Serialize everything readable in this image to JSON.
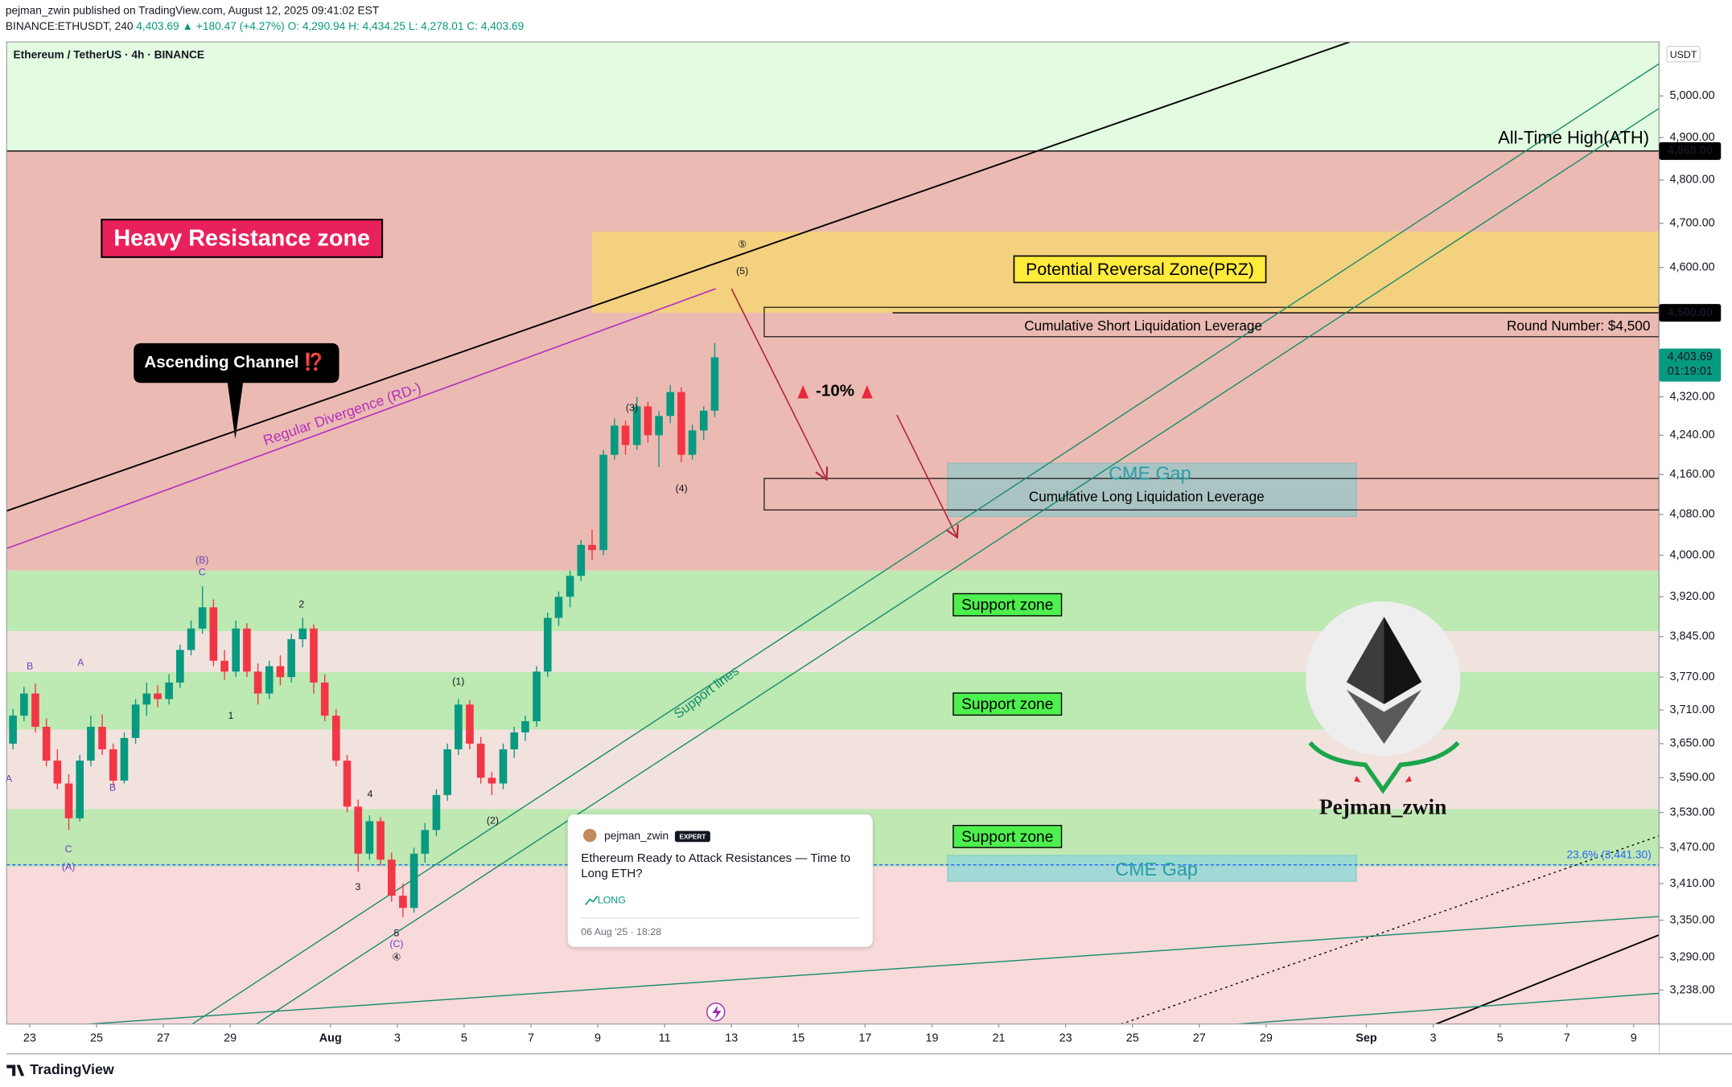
{
  "header": {
    "publisher": "pejman_zwin published on TradingView.com, August 12, 2025 09:41:02 EST",
    "symbol": "BINANCE:ETHUSDT, 240",
    "last": "4,403.69 ▲ +180.47 (+4.27%)",
    "ohlc": "O: 4,290.94 H: 4,434.25 L: 4,278.01 C: 4,403.69"
  },
  "chart_data": {
    "type": "candlestick",
    "title": "Ethereum / TetherUS · 4h · BINANCE",
    "currency": "USDT",
    "log_scale": true,
    "up_color": "#089981",
    "down_color": "#f23645",
    "x": [
      -0.5,
      -0.17,
      0.17,
      0.5,
      0.83,
      1.17,
      1.5,
      1.83,
      2.17,
      2.5,
      2.83,
      3.17,
      3.5,
      3.83,
      4.17,
      4.5,
      4.83,
      5.17,
      5.5,
      5.83,
      6.17,
      6.5,
      6.83,
      7.17,
      7.5,
      7.83,
      8.17,
      8.5,
      8.83,
      9.17,
      9.5,
      9.83,
      10.17,
      10.5,
      10.83,
      11.17,
      11.5,
      11.83,
      12.17,
      12.5,
      12.83,
      13.17,
      13.5,
      13.83,
      14.17,
      14.5,
      14.83,
      15.17,
      15.5,
      15.83,
      16.17,
      16.5,
      16.83,
      17.17,
      17.5,
      17.83,
      18.17,
      18.5,
      18.83,
      19.17,
      19.5,
      19.83,
      20.17,
      20.5
    ],
    "ohlc": [
      [
        3650,
        3712,
        3640,
        3700
      ],
      [
        3700,
        3752,
        3690,
        3740
      ],
      [
        3740,
        3758,
        3670,
        3680
      ],
      [
        3680,
        3695,
        3610,
        3620
      ],
      [
        3620,
        3640,
        3570,
        3580
      ],
      [
        3580,
        3596,
        3500,
        3520
      ],
      [
        3520,
        3630,
        3515,
        3620
      ],
      [
        3620,
        3700,
        3610,
        3680
      ],
      [
        3680,
        3702,
        3630,
        3640
      ],
      [
        3640,
        3650,
        3576,
        3585
      ],
      [
        3585,
        3670,
        3580,
        3660
      ],
      [
        3660,
        3730,
        3650,
        3720
      ],
      [
        3720,
        3760,
        3700,
        3740
      ],
      [
        3740,
        3755,
        3715,
        3730
      ],
      [
        3730,
        3775,
        3720,
        3760
      ],
      [
        3760,
        3830,
        3750,
        3820
      ],
      [
        3820,
        3875,
        3810,
        3860
      ],
      [
        3860,
        3940,
        3850,
        3900
      ],
      [
        3900,
        3915,
        3790,
        3800
      ],
      [
        3800,
        3820,
        3765,
        3780
      ],
      [
        3780,
        3875,
        3770,
        3860
      ],
      [
        3860,
        3870,
        3770,
        3780
      ],
      [
        3780,
        3795,
        3720,
        3740
      ],
      [
        3740,
        3800,
        3730,
        3790
      ],
      [
        3790,
        3810,
        3755,
        3770
      ],
      [
        3770,
        3850,
        3760,
        3840
      ],
      [
        3840,
        3880,
        3825,
        3860
      ],
      [
        3860,
        3868,
        3740,
        3760
      ],
      [
        3760,
        3775,
        3690,
        3700
      ],
      [
        3700,
        3712,
        3610,
        3620
      ],
      [
        3620,
        3630,
        3530,
        3540
      ],
      [
        3540,
        3552,
        3430,
        3460
      ],
      [
        3460,
        3525,
        3450,
        3515
      ],
      [
        3515,
        3522,
        3440,
        3450
      ],
      [
        3450,
        3462,
        3380,
        3390
      ],
      [
        3390,
        3410,
        3355,
        3370
      ],
      [
        3370,
        3470,
        3362,
        3460
      ],
      [
        3460,
        3512,
        3445,
        3500
      ],
      [
        3500,
        3570,
        3490,
        3560
      ],
      [
        3560,
        3650,
        3550,
        3640
      ],
      [
        3640,
        3730,
        3630,
        3720
      ],
      [
        3720,
        3728,
        3640,
        3650
      ],
      [
        3650,
        3662,
        3580,
        3590
      ],
      [
        3590,
        3600,
        3560,
        3580
      ],
      [
        3580,
        3650,
        3570,
        3640
      ],
      [
        3640,
        3680,
        3625,
        3670
      ],
      [
        3670,
        3700,
        3655,
        3690
      ],
      [
        3690,
        3790,
        3680,
        3780
      ],
      [
        3780,
        3890,
        3770,
        3880
      ],
      [
        3880,
        3930,
        3865,
        3920
      ],
      [
        3920,
        3970,
        3900,
        3960
      ],
      [
        3960,
        4030,
        3950,
        4020
      ],
      [
        4020,
        4050,
        3990,
        4010
      ],
      [
        4010,
        4210,
        4000,
        4200
      ],
      [
        4200,
        4275,
        4190,
        4260
      ],
      [
        4260,
        4270,
        4200,
        4220
      ],
      [
        4220,
        4320,
        4210,
        4300
      ],
      [
        4300,
        4310,
        4225,
        4240
      ],
      [
        4240,
        4290,
        4175,
        4280
      ],
      [
        4280,
        4345,
        4265,
        4330
      ],
      [
        4330,
        4340,
        4185,
        4200
      ],
      [
        4200,
        4262,
        4190,
        4250
      ],
      [
        4250,
        4300,
        4230,
        4290.94
      ],
      [
        4290.94,
        4434.25,
        4278.01,
        4403.69
      ]
    ],
    "xlim": [
      -0.69,
      48.76
    ],
    "xticks": [
      {
        "value": 0,
        "label": "23"
      },
      {
        "value": 2,
        "label": "25"
      },
      {
        "value": 4,
        "label": "27"
      },
      {
        "value": 6,
        "label": "29"
      },
      {
        "value": 9,
        "label": "Aug"
      },
      {
        "value": 11,
        "label": "3"
      },
      {
        "value": 13,
        "label": "5"
      },
      {
        "value": 15,
        "label": "7"
      },
      {
        "value": 17,
        "label": "9"
      },
      {
        "value": 19,
        "label": "11"
      },
      {
        "value": 21,
        "label": "13"
      },
      {
        "value": 23,
        "label": "15"
      },
      {
        "value": 25,
        "label": "17"
      },
      {
        "value": 27,
        "label": "19"
      },
      {
        "value": 29,
        "label": "21"
      },
      {
        "value": 31,
        "label": "23"
      },
      {
        "value": 33,
        "label": "25"
      },
      {
        "value": 35,
        "label": "27"
      },
      {
        "value": 37,
        "label": "29"
      },
      {
        "value": 40,
        "label": "Sep"
      },
      {
        "value": 42,
        "label": "3"
      },
      {
        "value": 44,
        "label": "5"
      },
      {
        "value": 46,
        "label": "7"
      },
      {
        "value": 48,
        "label": "9"
      }
    ],
    "ylim": [
      3185,
      5133
    ],
    "yticks": [
      {
        "value": 5000,
        "label": "5,000.00"
      },
      {
        "value": 4900,
        "label": "4,900.00"
      },
      {
        "value": 4800,
        "label": "4,800.00"
      },
      {
        "value": 4700,
        "label": "4,700.00"
      },
      {
        "value": 4600,
        "label": "4,600.00"
      },
      {
        "value": 4320,
        "label": "4,320.00"
      },
      {
        "value": 4240,
        "label": "4,240.00"
      },
      {
        "value": 4160,
        "label": "4,160.00"
      },
      {
        "value": 4080,
        "label": "4,080.00"
      },
      {
        "value": 4000,
        "label": "4,000.00"
      },
      {
        "value": 3920,
        "label": "3,920.00"
      },
      {
        "value": 3845,
        "label": "3,845.00"
      },
      {
        "value": 3770,
        "label": "3,770.00"
      },
      {
        "value": 3710,
        "label": "3,710.00"
      },
      {
        "value": 3650,
        "label": "3,650.00"
      },
      {
        "value": 3590,
        "label": "3,590.00"
      },
      {
        "value": 3530,
        "label": "3,530.00"
      },
      {
        "value": 3470,
        "label": "3,470.00"
      },
      {
        "value": 3410,
        "label": "3,410.00"
      },
      {
        "value": 3350,
        "label": "3,350.00"
      },
      {
        "value": 3290,
        "label": "3,290.00"
      },
      {
        "value": 3238,
        "label": "3,238.00"
      }
    ],
    "price_labels": [
      {
        "value": 4868,
        "label": "4,868.00"
      },
      {
        "value": 4500,
        "label": "4,500.00"
      }
    ],
    "last_price": {
      "value": 4403.69,
      "label": "4,403.69",
      "countdown": "01:19:01",
      "color": "#089981"
    }
  },
  "zones": [
    {
      "from": 4868,
      "to": 5133,
      "color": "#e3fbe1"
    },
    {
      "from": 3970,
      "to": 4868,
      "color": "#ebbbb3"
    },
    {
      "from": 3855,
      "to": 3970,
      "color": "#bde9b2"
    },
    {
      "from": 3779,
      "to": 3855,
      "color": "#f0e3de"
    },
    {
      "from": 3675,
      "to": 3779,
      "color": "#bde9b2"
    },
    {
      "from": 3536,
      "to": 3675,
      "color": "#f1e2de"
    },
    {
      "from": 3438,
      "to": 3536,
      "color": "#bfe8b3"
    },
    {
      "from": 3185,
      "to": 3438,
      "color": "#f8dadb"
    }
  ],
  "boxes": [
    {
      "x": [
        16.83,
        48.76
      ],
      "from": 4500,
      "to": 4681,
      "fill": "#f6d576",
      "stroke": "none"
    },
    {
      "x": [
        21.98,
        48.76
      ],
      "from": 4448,
      "to": 4512,
      "fill": "none",
      "stroke": "#000000"
    },
    {
      "x": [
        27.47,
        39.7
      ],
      "from": 4076,
      "to": 4183,
      "fill": "#9fc6c6",
      "stroke": "#8fb8b8"
    },
    {
      "x": [
        21.98,
        48.76
      ],
      "from": 4089,
      "to": 4152,
      "fill": "none",
      "stroke": "#000000"
    },
    {
      "x": [
        27.47,
        39.7
      ],
      "from": 3414,
      "to": 3457,
      "fill": "#93d8d6",
      "stroke": "#7ccac8"
    }
  ],
  "levels": [
    {
      "value": 4868,
      "x": [
        -0.69,
        48.76
      ],
      "color": "#000000",
      "dash": false
    },
    {
      "value": 4500,
      "x": [
        25.82,
        48.76
      ],
      "color": "#000000",
      "dash": false
    },
    {
      "value": 3441.3,
      "x": [
        -0.69,
        48.76
      ],
      "color": "#2962ff",
      "dash": true
    }
  ],
  "drawings": [
    {
      "points": [
        [
          -0.69,
          4087
        ],
        [
          39.5,
          5133
        ]
      ],
      "color": "#000000",
      "width": 1.4,
      "dash": false,
      "arrow": false
    },
    {
      "points": [
        [
          -0.69,
          4013
        ],
        [
          20.53,
          4553
        ]
      ],
      "color": "#b52fbf",
      "width": 1.2,
      "dash": false,
      "arrow": false
    },
    {
      "points": [
        [
          4.86,
          3185
        ],
        [
          48.76,
          5079
        ]
      ],
      "color": "#138a6a",
      "width": 1,
      "dash": false,
      "arrow": false
    },
    {
      "points": [
        [
          6.78,
          3185
        ],
        [
          48.76,
          4970
        ]
      ],
      "color": "#138a6a",
      "width": 1,
      "dash": false,
      "arrow": false
    },
    {
      "points": [
        [
          1.75,
          3185
        ],
        [
          48.76,
          3356
        ]
      ],
      "color": "#138a6a",
      "width": 1,
      "dash": false,
      "arrow": false
    },
    {
      "points": [
        [
          42.08,
          3185
        ],
        [
          48.76,
          3326
        ]
      ],
      "color": "#000000",
      "width": 1.4,
      "dash": false,
      "arrow": false
    },
    {
      "points": [
        [
          32.66,
          3185
        ],
        [
          48.76,
          3490
        ]
      ],
      "color": "#000000",
      "width": 1,
      "dash": true,
      "arrow": false
    },
    {
      "points": [
        [
          36.13,
          3185
        ],
        [
          48.76,
          3233
        ]
      ],
      "color": "#138a6a",
      "width": 1,
      "dash": false,
      "arrow": false
    },
    {
      "points": [
        [
          21,
          4553
        ],
        [
          23.83,
          4152
        ]
      ],
      "color": "#b2283b",
      "width": 1.2,
      "dash": false,
      "arrow": true
    },
    {
      "points": [
        [
          25.95,
          4282
        ],
        [
          27.74,
          4037
        ]
      ],
      "color": "#b2283b",
      "width": 1.2,
      "dash": false,
      "arrow": true
    }
  ],
  "wave_labels": [
    {
      "text": "A",
      "color": "#6a3fc0"
    },
    {
      "text": "B",
      "color": "#6a3fc0"
    },
    {
      "text": "A",
      "color": "#6a3fc0"
    },
    {
      "text": "C",
      "color": "#6a3fc0"
    },
    {
      "text": "(A)",
      "color": "#6a3fc0"
    },
    {
      "text": "B",
      "color": "#6a3fc0"
    },
    {
      "text": "(B)",
      "color": "#6a3fc0"
    },
    {
      "text": "C",
      "color": "#6a3fc0"
    },
    {
      "text": "1",
      "color": "#131722"
    },
    {
      "text": "2",
      "color": "#131722"
    },
    {
      "text": "3",
      "color": "#131722"
    },
    {
      "text": "4",
      "color": "#131722"
    },
    {
      "text": "5",
      "color": "#131722"
    },
    {
      "text": "(C)",
      "color": "#6a3fc0"
    },
    {
      "text": "④",
      "color": "#131722"
    },
    {
      "text": "(1)",
      "color": "#131722"
    },
    {
      "text": "(2)",
      "color": "#131722"
    },
    {
      "text": "(3)",
      "color": "#131722"
    },
    {
      "text": "(4)",
      "color": "#131722"
    },
    {
      "text": "(5)",
      "color": "#131722"
    },
    {
      "text": "⑤",
      "color": "#131722"
    }
  ],
  "annotations": {
    "heavy_resistance": "Heavy Resistance zone",
    "ascending_channel": "Ascending Channel ⁉️",
    "regular_divergence": "Regular Divergence (RD-)",
    "prz": "Potential Reversal Zone(PRZ)",
    "short_liquidation": "Cumulative Short Liquidation Leverage",
    "round_number": "Round Number: $4,500",
    "ath": "All-Time High(ATH)",
    "drop": "-10%",
    "cme_gap_top": "CME Gap",
    "long_liquidation": "Cumulative Long Liquidation Leverage",
    "support_1": "Support zone",
    "support_2": "Support zone",
    "support_3": "Support zone",
    "cme_gap_bottom": "CME Gap",
    "support_lines": "Support lines",
    "fib": "23.6% (3,441.30)",
    "logo_name": "Pejman_zwin"
  },
  "idea_card": {
    "author": "pejman_zwin",
    "badge": "EXPERT",
    "title": "Ethereum Ready to Attack Resistances — Time to Long ETH?",
    "direction": "LONG",
    "date": "06 Aug '25 · 18:28"
  },
  "footer": {
    "brand": "TradingView"
  }
}
